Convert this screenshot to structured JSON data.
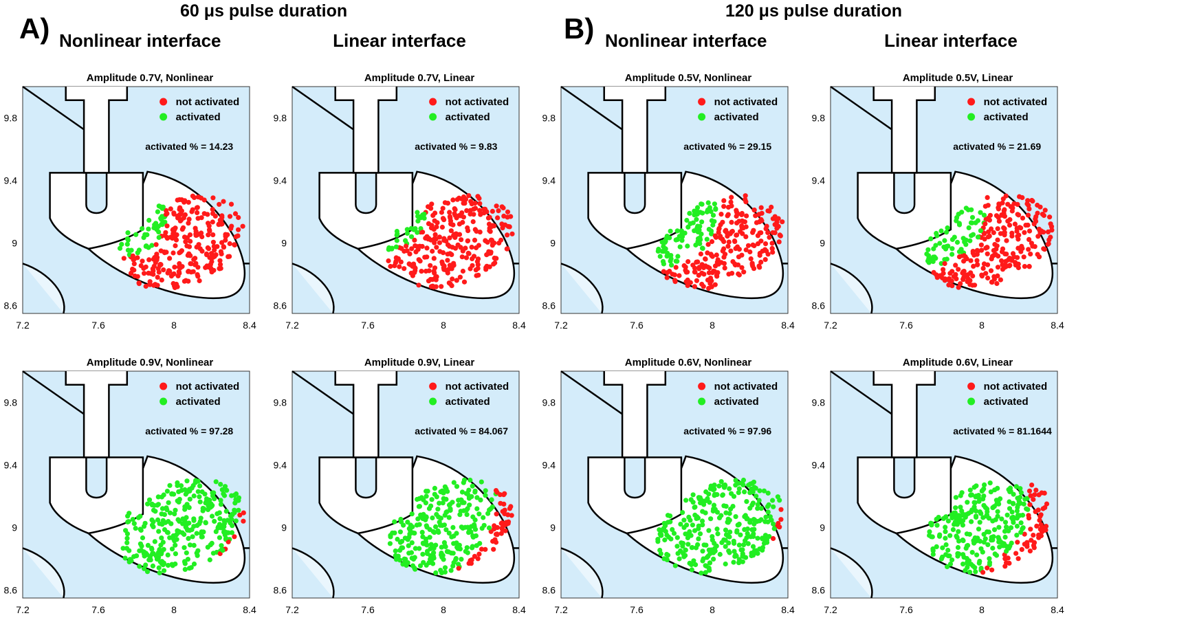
{
  "figure": {
    "section_a_title": "60 μs pulse duration",
    "section_b_title": "120 μs pulse duration",
    "panel_a_letter": "A)",
    "panel_b_letter": "B)",
    "column_titles": [
      "Nonlinear interface",
      "Linear interface",
      "Nonlinear interface",
      "Linear interface"
    ]
  },
  "colors": {
    "not_activated": "#ff1a1a",
    "activated": "#22ee22",
    "background": "#d4ecfa",
    "outline": "#000000"
  },
  "chart_data": [
    {
      "type": "scatter",
      "title": "Amplitude 0.7V, Nonlinear",
      "legend": [
        "not activated",
        "activated"
      ],
      "legend_position": "top-right",
      "annotation": "activated % = 14.23",
      "activated_fraction": 0.1423,
      "xlim": [
        7.2,
        8.4
      ],
      "ylim": [
        8.55,
        10.0
      ],
      "x_ticks": [
        "7.2",
        "7.6",
        "8",
        "8.4"
      ],
      "y_ticks": [
        "8.6",
        "9",
        "9.4",
        "9.8"
      ],
      "grid": false
    },
    {
      "type": "scatter",
      "title": "Amplitude 0.7V, Linear",
      "legend": [
        "not activated",
        "activated"
      ],
      "legend_position": "top-right",
      "annotation": "activated % = 9.83",
      "activated_fraction": 0.0983,
      "xlim": [
        7.2,
        8.4
      ],
      "ylim": [
        8.55,
        10.0
      ],
      "x_ticks": [
        "7.2",
        "7.6",
        "8",
        "8.4"
      ],
      "y_ticks": [
        "8.6",
        "9",
        "9.4",
        "9.8"
      ],
      "grid": false
    },
    {
      "type": "scatter",
      "title": "Amplitude 0.5V, Nonlinear",
      "legend": [
        "not activated",
        "activated"
      ],
      "legend_position": "top-right",
      "annotation": "activated % = 29.15",
      "activated_fraction": 0.2915,
      "xlim": [
        7.2,
        8.4
      ],
      "ylim": [
        8.55,
        10.0
      ],
      "x_ticks": [
        "7.2",
        "7.6",
        "8",
        "8.4"
      ],
      "y_ticks": [
        "8.6",
        "9",
        "9.4",
        "9.8"
      ],
      "grid": false
    },
    {
      "type": "scatter",
      "title": "Amplitude 0.5V, Linear",
      "legend": [
        "not activated",
        "activated"
      ],
      "legend_position": "top-right",
      "annotation": "activated % = 21.69",
      "activated_fraction": 0.2169,
      "xlim": [
        7.2,
        8.4
      ],
      "ylim": [
        8.55,
        10.0
      ],
      "x_ticks": [
        "7.2",
        "7.6",
        "8",
        "8.4"
      ],
      "y_ticks": [
        "8.6",
        "9",
        "9.4",
        "9.8"
      ],
      "grid": false
    },
    {
      "type": "scatter",
      "title": "Amplitude 0.9V, Nonlinear",
      "legend": [
        "not activated",
        "activated"
      ],
      "legend_position": "top-right",
      "annotation": "activated % = 97.28",
      "activated_fraction": 0.9728,
      "xlim": [
        7.2,
        8.4
      ],
      "ylim": [
        8.55,
        10.0
      ],
      "x_ticks": [
        "7.2",
        "7.6",
        "8",
        "8.4"
      ],
      "y_ticks": [
        "8.6",
        "9",
        "9.4",
        "9.8"
      ],
      "grid": false
    },
    {
      "type": "scatter",
      "title": "Amplitude 0.9V, Linear",
      "legend": [
        "not activated",
        "activated"
      ],
      "legend_position": "top-right",
      "annotation": "activated % = 84.067",
      "activated_fraction": 0.84067,
      "xlim": [
        7.2,
        8.4
      ],
      "ylim": [
        8.55,
        10.0
      ],
      "x_ticks": [
        "7.2",
        "7.6",
        "8",
        "8.4"
      ],
      "y_ticks": [
        "8.6",
        "9",
        "9.4",
        "9.8"
      ],
      "grid": false
    },
    {
      "type": "scatter",
      "title": "Amplitude 0.6V, Nonlinear",
      "legend": [
        "not activated",
        "activated"
      ],
      "legend_position": "top-right",
      "annotation": "activated % = 97.96",
      "activated_fraction": 0.9796,
      "xlim": [
        7.2,
        8.4
      ],
      "ylim": [
        8.55,
        10.0
      ],
      "x_ticks": [
        "7.2",
        "7.6",
        "8",
        "8.4"
      ],
      "y_ticks": [
        "8.6",
        "9",
        "9.4",
        "9.8"
      ],
      "grid": false
    },
    {
      "type": "scatter",
      "title": "Amplitude 0.6V, Linear",
      "legend": [
        "not activated",
        "activated"
      ],
      "legend_position": "top-right",
      "annotation": "activated % = 81.1644",
      "activated_fraction": 0.811644,
      "xlim": [
        7.2,
        8.4
      ],
      "ylim": [
        8.55,
        10.0
      ],
      "x_ticks": [
        "7.2",
        "7.6",
        "8",
        "8.4"
      ],
      "y_ticks": [
        "8.6",
        "9",
        "9.4",
        "9.8"
      ],
      "grid": false
    }
  ]
}
